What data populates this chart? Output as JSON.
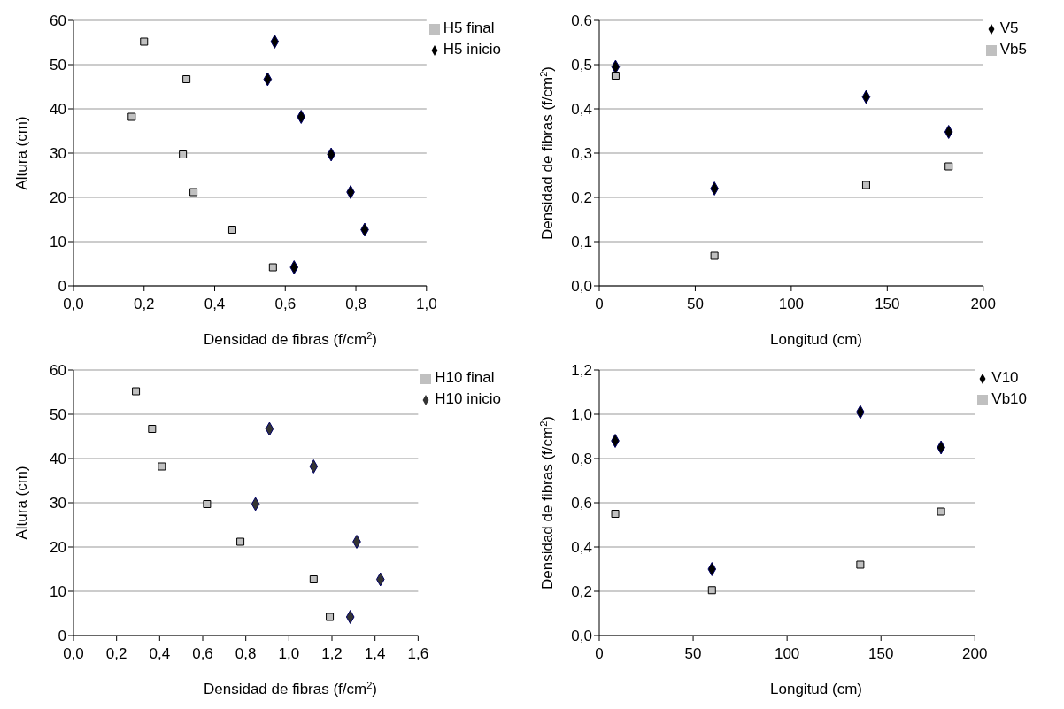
{
  "chart_data": [
    {
      "type": "scatter",
      "xlabel": "Densidad de fibras (f/cm$^{2}$)",
      "ylabel": "Altura (cm)",
      "xlim": [
        0,
        1
      ],
      "xticks": [
        {
          "value": 0,
          "label": "0,0"
        },
        {
          "value": 0.2,
          "label": "0,2"
        },
        {
          "value": 0.4,
          "label": "0,4"
        },
        {
          "value": 0.6,
          "label": "0,6"
        },
        {
          "value": 0.8,
          "label": "0,8"
        },
        {
          "value": 1,
          "label": "1,0"
        }
      ],
      "ylim": [
        0,
        60
      ],
      "yticks": [
        0,
        10,
        20,
        30,
        40,
        50,
        60
      ],
      "grid": "y",
      "legend": "top right",
      "series": [
        {
          "name": "H5 inicio",
          "color": "#000000",
          "marker": "diamond",
          "x": [
            0.57,
            0.55,
            0.645,
            0.73,
            0.785,
            0.825,
            0.625
          ],
          "values": [
            55.2,
            46.7,
            38.2,
            29.7,
            21.2,
            12.7,
            4.2
          ]
        },
        {
          "name": "H5 final",
          "color": "#c0c0c0",
          "marker": "square",
          "x": [
            0.2,
            0.32,
            0.165,
            0.31,
            0.34,
            0.45,
            0.565
          ],
          "values": [
            55.2,
            46.7,
            38.2,
            29.7,
            21.2,
            12.7,
            4.2
          ]
        }
      ]
    },
    {
      "type": "scatter",
      "xlabel": "Longitud (cm)",
      "ylabel": "Densidad de fibras (f/cm$^{2}$)",
      "xlim": [
        0,
        200
      ],
      "xticks": [
        0,
        50,
        100,
        150,
        200
      ],
      "ylim": [
        0,
        0.6
      ],
      "yticks": [
        {
          "value": 0,
          "label": "0,0"
        },
        {
          "value": 0.1,
          "label": "0,1"
        },
        {
          "value": 0.2,
          "label": "0,2"
        },
        {
          "value": 0.3,
          "label": "0,3"
        },
        {
          "value": 0.4,
          "label": "0,4"
        },
        {
          "value": 0.5,
          "label": "0,5"
        },
        {
          "value": 0.6,
          "label": "0,6"
        }
      ],
      "grid": "y",
      "legend": "top right",
      "series": [
        {
          "name": "V5",
          "color": "#000000",
          "marker": "diamond",
          "x": [
            8.5,
            60,
            139,
            182
          ],
          "values": [
            0.495,
            0.22,
            0.427,
            0.348
          ]
        },
        {
          "name": "Vb5",
          "color": "#c0c0c0",
          "marker": "square",
          "x": [
            8.5,
            60,
            139,
            182
          ],
          "values": [
            0.475,
            0.068,
            0.228,
            0.27
          ]
        }
      ]
    },
    {
      "type": "scatter",
      "xlabel": "Densidad de fibras (f/cm$^{2}$)",
      "ylabel": "Altura (cm)",
      "xlim": [
        0,
        1.6
      ],
      "xticks": [
        {
          "value": 0,
          "label": "0,0"
        },
        {
          "value": 0.2,
          "label": "0,2"
        },
        {
          "value": 0.4,
          "label": "0,4"
        },
        {
          "value": 0.6,
          "label": "0,6"
        },
        {
          "value": 0.8,
          "label": "0,8"
        },
        {
          "value": 1,
          "label": "1,0"
        },
        {
          "value": 1.2,
          "label": "1,2"
        },
        {
          "value": 1.4,
          "label": "1,4"
        },
        {
          "value": 1.6,
          "label": "1,6"
        }
      ],
      "ylim": [
        0,
        60
      ],
      "yticks": [
        0,
        10,
        20,
        30,
        40,
        50,
        60
      ],
      "grid": "y",
      "legend": "top right",
      "series": [
        {
          "name": "H10 inicio",
          "color": "#333333",
          "marker": "diamond",
          "x": [
            0.91,
            1.115,
            0.845,
            1.315,
            1.425,
            1.285
          ],
          "values": [
            46.7,
            38.2,
            29.7,
            21.2,
            12.7,
            4.2
          ]
        },
        {
          "name": "H10 final",
          "color": "#c0c0c0",
          "marker": "square",
          "x": [
            0.29,
            0.365,
            0.41,
            0.62,
            0.775,
            1.115,
            1.19
          ],
          "values": [
            55.2,
            46.7,
            38.2,
            29.7,
            21.2,
            12.7,
            4.2
          ]
        }
      ]
    },
    {
      "type": "scatter",
      "xlabel": "Longitud (cm)",
      "ylabel": "Densidad de fibras (f/cm$^{2}$)",
      "xlim": [
        0,
        200
      ],
      "xticks": [
        0,
        50,
        100,
        150,
        200
      ],
      "ylim": [
        0,
        1.2
      ],
      "yticks": [
        {
          "value": 0,
          "label": "0,0"
        },
        {
          "value": 0.2,
          "label": "0,2"
        },
        {
          "value": 0.4,
          "label": "0,4"
        },
        {
          "value": 0.6,
          "label": "0,6"
        },
        {
          "value": 0.8,
          "label": "0,8"
        },
        {
          "value": 1,
          "label": "1,0"
        },
        {
          "value": 1.2,
          "label": "1,2"
        }
      ],
      "grid": "y",
      "legend": "top right",
      "series": [
        {
          "name": "V10",
          "color": "#000000",
          "marker": "diamond",
          "x": [
            8.5,
            60,
            139,
            182
          ],
          "values": [
            0.88,
            0.3,
            1.01,
            0.85
          ]
        },
        {
          "name": "Vb10",
          "color": "#c0c0c0",
          "marker": "square",
          "x": [
            8.5,
            60,
            139,
            182
          ],
          "values": [
            0.55,
            0.205,
            0.32,
            0.56
          ]
        }
      ]
    }
  ]
}
